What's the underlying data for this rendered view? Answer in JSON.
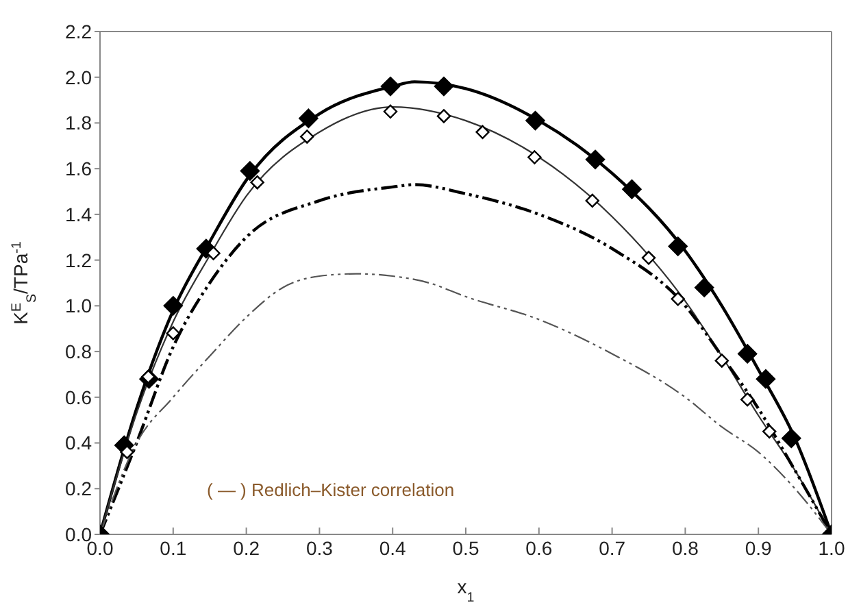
{
  "chart_data": {
    "type": "line",
    "xlabel": "x$_{1}$",
    "ylabel": "K$^{E}$$_{S}$/TPa$^{-1}$",
    "xlim": [
      0,
      1
    ],
    "xticks": [
      {
        "value": 0,
        "label": "0.0"
      },
      0.1,
      0.2,
      0.3,
      0.4,
      0.5,
      0.6,
      0.7,
      0.8,
      0.9,
      {
        "value": 1,
        "label": "1.0"
      }
    ],
    "ylim": [
      0,
      2.2
    ],
    "yticks": [
      {
        "value": 0,
        "label": "0.0"
      },
      0.2,
      0.4,
      0.6,
      0.8,
      {
        "value": 1,
        "label": "1.0"
      },
      1.2,
      1.4,
      1.6,
      1.8,
      {
        "value": 2,
        "label": "2.0"
      },
      2.2
    ],
    "grid": false,
    "legend": false,
    "annotations": [
      "( — ) Redlich–Kister correlation"
    ],
    "series": [
      {
        "type": "scatter",
        "marker": "diamond",
        "color": "#000000",
        "x": [
          0,
          0.033,
          0.067,
          0.1,
          0.145,
          0.205,
          0.285,
          0.397,
          0.47,
          0.595,
          0.677,
          0.727,
          0.79,
          0.826,
          0.885,
          0.91,
          0.945,
          1
        ],
        "values": [
          0,
          0.39,
          0.68,
          1.0,
          1.25,
          1.59,
          1.82,
          1.96,
          1.96,
          1.81,
          1.64,
          1.51,
          1.26,
          1.08,
          0.79,
          0.68,
          0.42,
          0
        ]
      },
      {
        "type": "scatter",
        "marker": "diamond",
        "color": "#ffffff",
        "x": [
          0.037,
          0.066,
          0.1,
          0.155,
          0.215,
          0.283,
          0.397,
          0.47,
          0.523,
          0.594,
          0.673,
          0.75,
          0.79,
          0.85,
          0.885,
          0.915
        ],
        "values": [
          0.36,
          0.69,
          0.88,
          1.23,
          1.54,
          1.74,
          1.85,
          1.83,
          1.76,
          1.65,
          1.46,
          1.21,
          1.03,
          0.76,
          0.59,
          0.45
        ]
      },
      {
        "line_style": "solid",
        "color": "#000000",
        "x": [
          0,
          0.05,
          0.1,
          0.15,
          0.2,
          0.3,
          0.4,
          0.43,
          0.5,
          0.6,
          0.7,
          0.8,
          0.85,
          0.9,
          0.95,
          1
        ],
        "values": [
          0,
          0.55,
          0.98,
          1.28,
          1.55,
          1.84,
          1.96,
          1.98,
          1.95,
          1.81,
          1.58,
          1.24,
          1.0,
          0.72,
          0.42,
          0
        ]
      },
      {
        "line_style": "solid",
        "color": "#333333",
        "x": [
          0,
          0.05,
          0.1,
          0.15,
          0.2,
          0.3,
          0.4,
          0.5,
          0.6,
          0.7,
          0.8,
          0.85,
          0.9,
          0.95,
          1
        ],
        "values": [
          0,
          0.53,
          0.93,
          1.22,
          1.48,
          1.76,
          1.87,
          1.81,
          1.65,
          1.39,
          1.02,
          0.78,
          0.52,
          0.28,
          0
        ]
      },
      {
        "line_style": "dashed",
        "color": "#000000",
        "x": [
          0,
          0.05,
          0.1,
          0.15,
          0.2,
          0.3,
          0.4,
          0.43,
          0.5,
          0.6,
          0.7,
          0.8,
          0.85,
          0.9,
          0.95,
          1
        ],
        "values": [
          0,
          0.4,
          0.82,
          1.1,
          1.3,
          1.46,
          1.52,
          1.53,
          1.49,
          1.4,
          1.25,
          1.0,
          0.78,
          0.55,
          0.28,
          0
        ]
      },
      {
        "line_style": "dashed",
        "color": "#555555",
        "x": [
          0,
          0.05,
          0.1,
          0.15,
          0.2,
          0.25,
          0.3,
          0.35,
          0.4,
          0.45,
          0.5,
          0.6,
          0.7,
          0.8,
          0.85,
          0.9,
          0.95,
          1
        ],
        "values": [
          0,
          0.4,
          0.6,
          0.78,
          0.95,
          1.08,
          1.13,
          1.14,
          1.13,
          1.1,
          1.04,
          0.94,
          0.79,
          0.6,
          0.47,
          0.36,
          0.2,
          0
        ]
      }
    ]
  }
}
